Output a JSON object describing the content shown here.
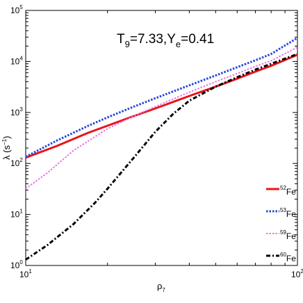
{
  "chart_data": {
    "type": "line",
    "xlabel": "ρ",
    "xlabel_sub": "7",
    "ylabel": "λ (s",
    "ylabel_sup": "−1",
    "ylabel_close": ")",
    "annotation": {
      "t_main": "T",
      "t_sub": "9",
      "t_value": "=7.33,Y",
      "y_sub": "e",
      "y_value": "=0.41"
    },
    "x_scale": "log",
    "y_scale": "log",
    "xlim": [
      10,
      100
    ],
    "ylim": [
      1,
      100000
    ],
    "grid": false,
    "legend_position": "bottom-right",
    "x_ticks": [
      {
        "value": 10,
        "base": "10",
        "exp": "1"
      },
      {
        "value": 100,
        "base": "10",
        "exp": "2"
      }
    ],
    "y_ticks": [
      {
        "value": 1,
        "base": "10",
        "exp": "0"
      },
      {
        "value": 10,
        "base": "10",
        "exp": "1"
      },
      {
        "value": 100,
        "base": "10",
        "exp": "2"
      },
      {
        "value": 1000,
        "base": "10",
        "exp": "3"
      },
      {
        "value": 10000,
        "base": "10",
        "exp": "4"
      },
      {
        "value": 100000,
        "base": "10",
        "exp": "5"
      }
    ],
    "series": [
      {
        "name_sup": "52",
        "name": "Fe",
        "color": "#e8141a",
        "style": "solid",
        "x": [
          10,
          13,
          17,
          20,
          25,
          30,
          40,
          50,
          60,
          70,
          80,
          100
        ],
        "y": [
          130,
          220,
          400,
          550,
          850,
          1200,
          2100,
          3200,
          4600,
          6300,
          8200,
          13500
        ]
      },
      {
        "name_sup": "53",
        "name": "Fe",
        "color": "#2346e0",
        "style": "dotted",
        "x": [
          10,
          13,
          17,
          20,
          25,
          30,
          40,
          50,
          60,
          70,
          80,
          100
        ],
        "y": [
          135,
          280,
          550,
          800,
          1300,
          1900,
          3400,
          5300,
          7700,
          10500,
          14000,
          29000
        ]
      },
      {
        "name_sup": "59",
        "name": "Fe",
        "color": "#ea74e2",
        "style": "dotted",
        "x": [
          10,
          12,
          15,
          20,
          25,
          30,
          40,
          50,
          60,
          70,
          80,
          100
        ],
        "y": [
          32,
          65,
          180,
          480,
          850,
          1300,
          2500,
          4000,
          5800,
          8000,
          10300,
          19000
        ]
      },
      {
        "name_sup": "60",
        "name": "Fe",
        "color": "#000000",
        "style": "dashdot",
        "x": [
          10,
          12,
          15,
          18,
          20,
          25,
          30,
          35,
          40,
          50,
          60,
          70,
          80,
          100
        ],
        "y": [
          1.3,
          2.5,
          6.5,
          17,
          32,
          130,
          420,
          950,
          1700,
          3200,
          4900,
          6900,
          9000,
          14000
        ]
      }
    ]
  }
}
